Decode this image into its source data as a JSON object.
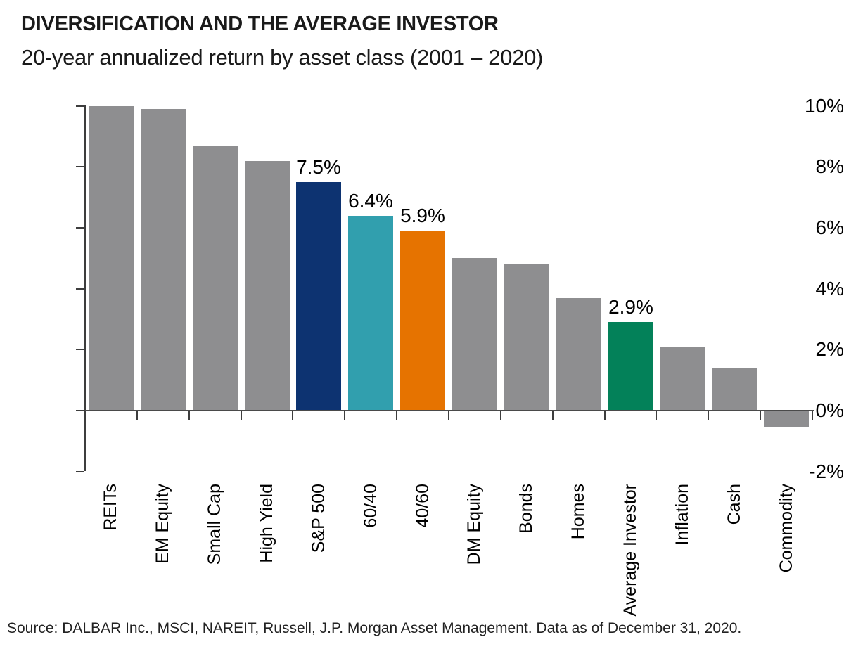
{
  "header": {
    "title": "DIVERSIFICATION AND THE AVERAGE INVESTOR",
    "subtitle": "20-year annualized return by asset class (2001 – 2020)"
  },
  "source": "Source: DALBAR Inc., MSCI, NAREIT, Russell, J.P. Morgan Asset Management. Data as of December 31, 2020.",
  "chart_data": {
    "type": "bar",
    "title": "DIVERSIFICATION AND THE AVERAGE INVESTOR",
    "subtitle": "20-year annualized return by asset class (2001 – 2020)",
    "xlabel": "",
    "ylabel": "",
    "ylim": [
      -2,
      10
    ],
    "yticks": [
      10,
      8,
      6,
      4,
      2,
      0,
      -2
    ],
    "ytick_labels": [
      "10%",
      "8%",
      "6%",
      "4%",
      "2%",
      "0%",
      "-2%"
    ],
    "grid": false,
    "legend": false,
    "categories": [
      "REITs",
      "EM Equity",
      "Small Cap",
      "High Yield",
      "S&P 500",
      "60/40",
      "40/60",
      "DM Equity",
      "Bonds",
      "Homes",
      "Average Investor",
      "Inflation",
      "Cash",
      "Commodity"
    ],
    "values": [
      10.0,
      9.9,
      8.7,
      8.2,
      7.5,
      6.4,
      5.9,
      5.0,
      4.8,
      3.7,
      2.9,
      2.1,
      1.4,
      -0.5
    ],
    "items": [
      {
        "category": "REITs",
        "value": 10.0,
        "color": "gray"
      },
      {
        "category": "EM Equity",
        "value": 9.9,
        "color": "gray"
      },
      {
        "category": "Small Cap",
        "value": 8.7,
        "color": "gray"
      },
      {
        "category": "High Yield",
        "value": 8.2,
        "color": "gray"
      },
      {
        "category": "S&P 500",
        "value": 7.5,
        "color": "navy",
        "label": "7.5%"
      },
      {
        "category": "60/40",
        "value": 6.4,
        "color": "teal",
        "label": "6.4%"
      },
      {
        "category": "40/60",
        "value": 5.9,
        "color": "orange",
        "label": "5.9%"
      },
      {
        "category": "DM Equity",
        "value": 5.0,
        "color": "gray"
      },
      {
        "category": "Bonds",
        "value": 4.8,
        "color": "gray"
      },
      {
        "category": "Homes",
        "value": 3.7,
        "color": "gray"
      },
      {
        "category": "Average Investor",
        "value": 2.9,
        "color": "green",
        "label": "2.9%"
      },
      {
        "category": "Inflation",
        "value": 2.1,
        "color": "gray"
      },
      {
        "category": "Cash",
        "value": 1.4,
        "color": "gray"
      },
      {
        "category": "Commodity",
        "value": -0.5,
        "color": "gray"
      }
    ],
    "colors": {
      "gray": "#8e8e90",
      "navy": "#0d3371",
      "teal": "#319fae",
      "orange": "#e67300",
      "green": "#038159"
    }
  }
}
